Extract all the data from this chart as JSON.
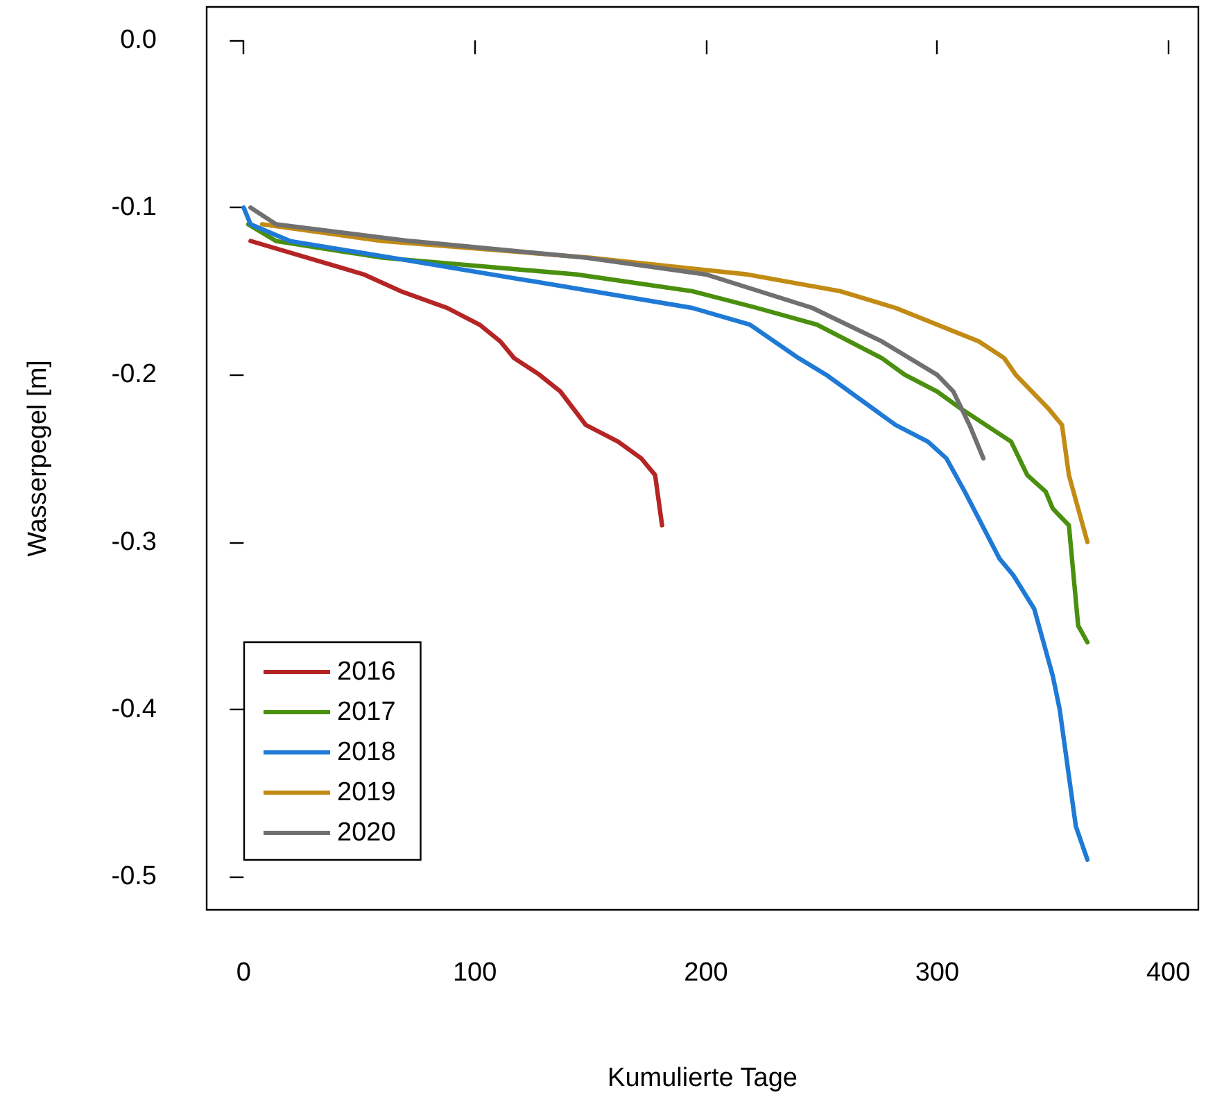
{
  "chart_data": {
    "type": "line",
    "xlabel": "Kumulierte Tage",
    "ylabel": "Wasserpegel [m]",
    "xlim": [
      -16,
      413
    ],
    "ylim": [
      -0.52,
      0.02
    ],
    "xticks": [
      0,
      100,
      200,
      300,
      400
    ],
    "yticks": [
      {
        "value": 0,
        "label": "0.0"
      },
      -0.1,
      -0.2,
      -0.3,
      -0.4,
      -0.5
    ],
    "grid": false,
    "legend": "bottom left",
    "marker": "none",
    "line_style": "solid",
    "series": [
      {
        "name": "2016",
        "color": "#b52525",
        "x": [
          3,
          52,
          68,
          88,
          102,
          111,
          117,
          128,
          137,
          148,
          162,
          172,
          178,
          181
        ],
        "values": [
          -0.12,
          -0.14,
          -0.15,
          -0.16,
          -0.17,
          -0.18,
          -0.19,
          -0.2,
          -0.21,
          -0.23,
          -0.24,
          -0.25,
          -0.26,
          -0.29
        ]
      },
      {
        "name": "2017",
        "color": "#4a8f0e",
        "x": [
          2,
          14,
          60,
          144,
          194,
          222,
          248,
          276,
          286,
          300,
          310,
          332,
          339,
          347,
          350,
          357,
          361,
          365
        ],
        "values": [
          -0.11,
          -0.12,
          -0.13,
          -0.14,
          -0.15,
          -0.16,
          -0.17,
          -0.19,
          -0.2,
          -0.21,
          -0.22,
          -0.24,
          -0.26,
          -0.27,
          -0.28,
          -0.29,
          -0.35,
          -0.36
        ]
      },
      {
        "name": "2018",
        "color": "#1f7ad6",
        "x": [
          0,
          3,
          20,
          64,
          194,
          219,
          240,
          252,
          282,
          296,
          304,
          312,
          327,
          333,
          342,
          346,
          350,
          353,
          360,
          365
        ],
        "values": [
          -0.1,
          -0.11,
          -0.12,
          -0.13,
          -0.16,
          -0.17,
          -0.19,
          -0.2,
          -0.23,
          -0.24,
          -0.25,
          -0.27,
          -0.31,
          -0.32,
          -0.34,
          -0.36,
          -0.38,
          -0.4,
          -0.47,
          -0.49
        ]
      },
      {
        "name": "2019",
        "color": "#c28b14",
        "x": [
          8,
          60,
          150,
          218,
          258,
          282,
          318,
          329,
          334,
          348,
          354,
          357,
          361,
          365
        ],
        "values": [
          -0.11,
          -0.12,
          -0.13,
          -0.14,
          -0.15,
          -0.16,
          -0.18,
          -0.19,
          -0.2,
          -0.22,
          -0.23,
          -0.26,
          -0.28,
          -0.3
        ]
      },
      {
        "name": "2020",
        "color": "#707070",
        "x": [
          3,
          14,
          72,
          148,
          200,
          246,
          276,
          300,
          307,
          314,
          320
        ],
        "values": [
          -0.1,
          -0.11,
          -0.12,
          -0.13,
          -0.14,
          -0.16,
          -0.18,
          -0.2,
          -0.21,
          -0.23,
          -0.25
        ]
      }
    ]
  }
}
